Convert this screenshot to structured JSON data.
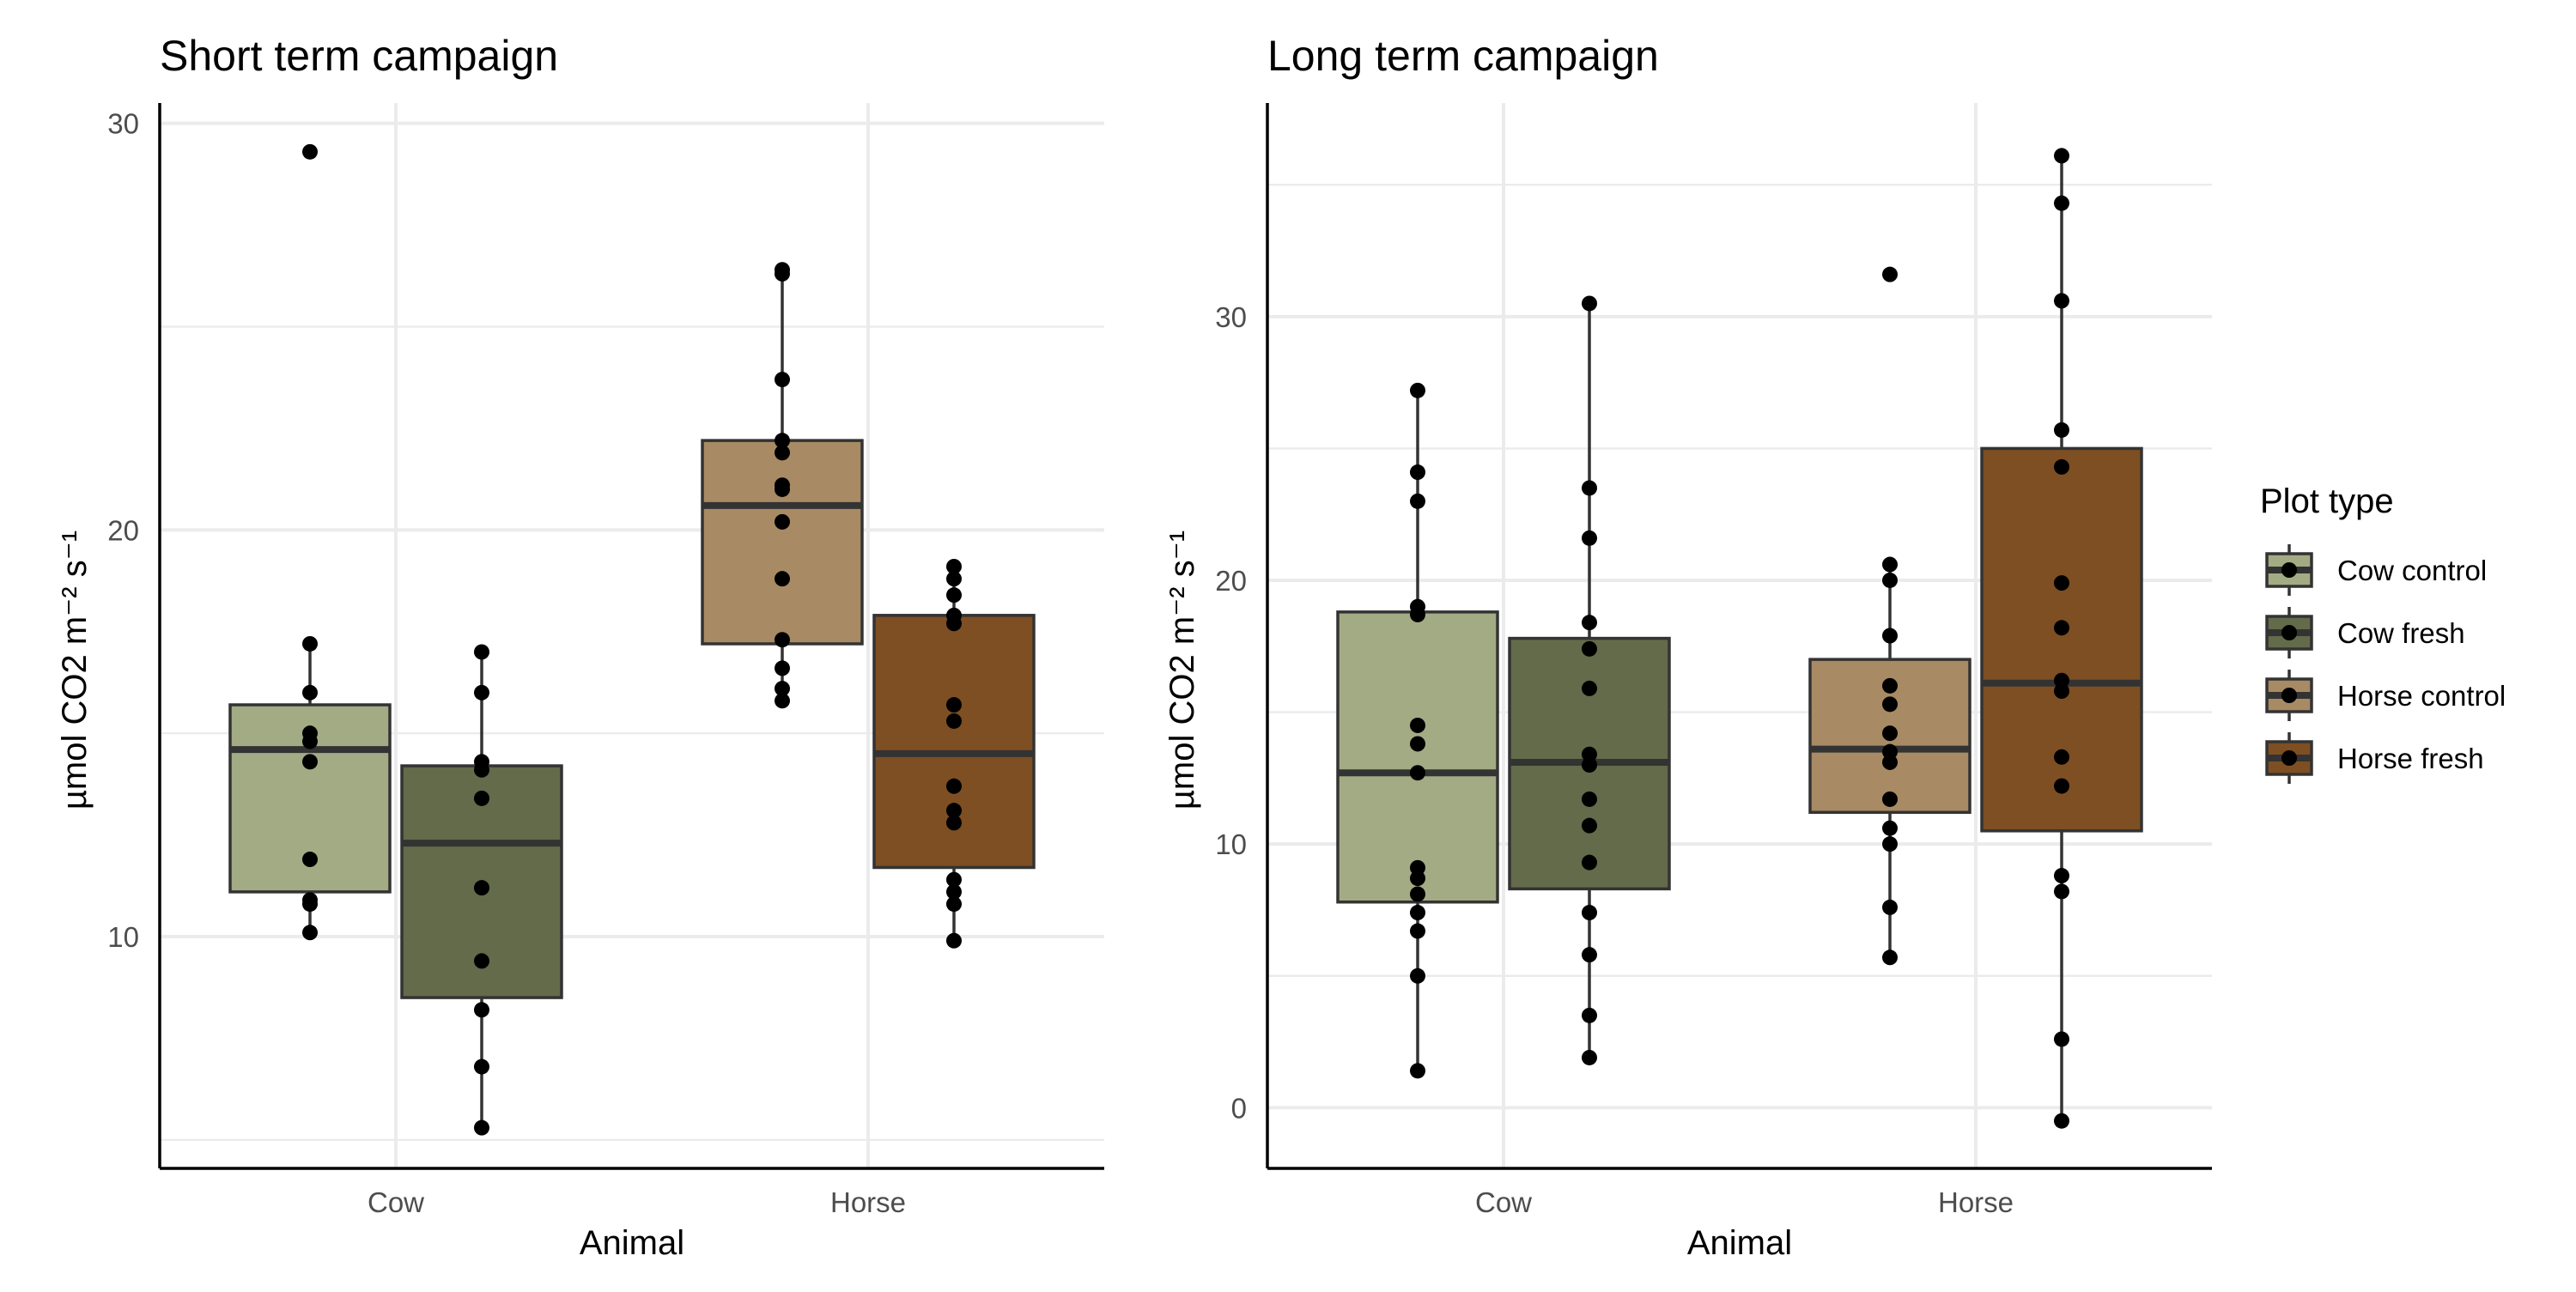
{
  "legend": {
    "title": "Plot type",
    "items": [
      {
        "label": "Cow control",
        "color": "#a3ab84"
      },
      {
        "label": "Cow fresh",
        "color": "#636b4a"
      },
      {
        "label": "Horse control",
        "color": "#a88a64"
      },
      {
        "label": "Horse fresh",
        "color": "#7e4f23"
      }
    ]
  },
  "chart_data": [
    {
      "type": "box",
      "title": "Short term campaign",
      "xlabel": "Animal",
      "ylabel": "µmol CO2 m⁻² s⁻¹",
      "categories": [
        "Cow",
        "Horse"
      ],
      "ylim": [
        4.3,
        30.5
      ],
      "y_ticks": [
        10,
        20,
        30
      ],
      "grid": true,
      "series": [
        {
          "name": "Cow control",
          "category": "Cow",
          "q1": 11.1,
          "median": 14.6,
          "q3": 15.7,
          "whisker_low": 10.1,
          "whisker_high": 17.2,
          "points": [
            29.3,
            17.2,
            16.0,
            15.0,
            14.8,
            14.3,
            11.9,
            10.9,
            10.8,
            10.1
          ]
        },
        {
          "name": "Cow fresh",
          "category": "Cow",
          "q1": 8.5,
          "median": 12.3,
          "q3": 14.2,
          "whisker_low": 5.3,
          "whisker_high": 17.0,
          "points": [
            17.0,
            16.0,
            14.3,
            14.1,
            13.4,
            11.2,
            9.4,
            8.2,
            6.8,
            5.3
          ]
        },
        {
          "name": "Horse control",
          "category": "Horse",
          "q1": 17.2,
          "median": 20.6,
          "q3": 22.2,
          "whisker_low": 15.8,
          "whisker_high": 26.4,
          "points": [
            26.4,
            26.3,
            23.7,
            22.2,
            21.9,
            21.1,
            21.0,
            20.2,
            18.8,
            17.3,
            16.6,
            16.1,
            15.8
          ]
        },
        {
          "name": "Horse fresh",
          "category": "Horse",
          "q1": 11.7,
          "median": 14.5,
          "q3": 17.9,
          "whisker_low": 9.9,
          "whisker_high": 19.1,
          "points": [
            19.1,
            18.8,
            18.4,
            17.9,
            17.7,
            15.7,
            15.3,
            13.7,
            13.1,
            12.8,
            11.4,
            11.1,
            10.8,
            9.9
          ]
        }
      ]
    },
    {
      "type": "box",
      "title": "Long term campaign",
      "xlabel": "Animal",
      "ylabel": "µmol CO2 m⁻² s⁻¹",
      "categories": [
        "Cow",
        "Horse"
      ],
      "ylim": [
        -2.3,
        38.1
      ],
      "y_ticks": [
        0,
        10,
        20,
        30
      ],
      "grid": true,
      "series": [
        {
          "name": "Cow control",
          "category": "Cow",
          "q1": 7.8,
          "median": 12.7,
          "q3": 18.8,
          "whisker_low": 1.4,
          "whisker_high": 27.2,
          "points": [
            27.2,
            24.1,
            23.0,
            19.0,
            18.7,
            14.5,
            13.8,
            12.7,
            9.1,
            8.7,
            8.1,
            7.4,
            6.7,
            5.0,
            1.4
          ]
        },
        {
          "name": "Cow fresh",
          "category": "Cow",
          "q1": 8.3,
          "median": 13.1,
          "q3": 17.8,
          "whisker_low": 1.9,
          "whisker_high": 30.5,
          "points": [
            30.5,
            23.5,
            21.6,
            18.4,
            17.4,
            15.9,
            13.4,
            13.0,
            11.7,
            10.7,
            9.3,
            7.4,
            5.8,
            3.5,
            1.9
          ]
        },
        {
          "name": "Horse control",
          "category": "Horse",
          "q1": 11.2,
          "median": 13.6,
          "q3": 17.0,
          "whisker_low": 5.7,
          "whisker_high": 20.6,
          "points": [
            31.6,
            20.6,
            20.0,
            17.9,
            16.0,
            15.3,
            14.2,
            13.5,
            13.1,
            11.7,
            10.6,
            10.0,
            7.6,
            5.7
          ]
        },
        {
          "name": "Horse fresh",
          "category": "Horse",
          "q1": 10.5,
          "median": 16.1,
          "q3": 25.0,
          "whisker_low": -0.5,
          "whisker_high": 36.1,
          "points": [
            36.1,
            34.3,
            30.6,
            25.7,
            24.3,
            19.9,
            18.2,
            16.2,
            15.8,
            13.3,
            12.2,
            8.8,
            8.2,
            2.6,
            -0.5
          ]
        }
      ]
    }
  ]
}
